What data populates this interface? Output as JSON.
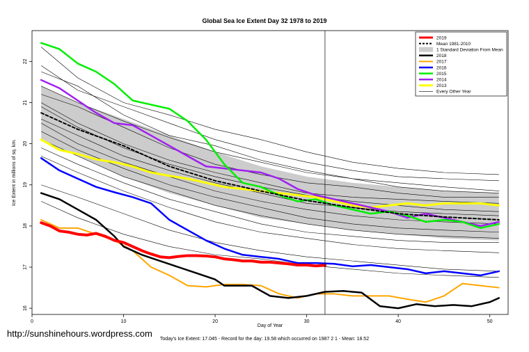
{
  "chart_data": {
    "type": "line",
    "title": "Global Sea Ice Extent Day 32 1978 to 2019",
    "xlabel": "Day of Year",
    "ylabel": "Ice Extent in millions of sq. km.",
    "xlim": [
      0,
      52
    ],
    "ylim": [
      15.85,
      22.75
    ],
    "x_ticks": [
      0,
      10,
      20,
      30,
      40,
      50
    ],
    "y_ticks": [
      16,
      17,
      18,
      19,
      20,
      21,
      22
    ],
    "current_day": 32,
    "legend_position": "top-right",
    "band": {
      "name": "1 Standard Deviation From Mean",
      "color": "#cccccc",
      "x": [
        1,
        5,
        10,
        15,
        20,
        25,
        30,
        35,
        40,
        45,
        51
      ],
      "upper": [
        21.4,
        21.0,
        20.6,
        20.2,
        19.8,
        19.45,
        19.2,
        19.05,
        18.95,
        18.85,
        18.8
      ],
      "lower": [
        20.1,
        19.7,
        19.2,
        18.8,
        18.5,
        18.2,
        18.05,
        17.9,
        17.8,
        17.7,
        17.65
      ]
    },
    "series": [
      {
        "name": "2019",
        "color": "#ff0000",
        "width": 4,
        "dash": "",
        "x": [
          1,
          2,
          3,
          4,
          5,
          6,
          7,
          8,
          9,
          10,
          11,
          12,
          13,
          14,
          15,
          16,
          17,
          18,
          19,
          20,
          21,
          22,
          23,
          24,
          25,
          26,
          27,
          28,
          29,
          30,
          31,
          32
        ],
        "y": [
          18.08,
          18.0,
          17.88,
          17.85,
          17.8,
          17.78,
          17.82,
          17.75,
          17.65,
          17.6,
          17.5,
          17.4,
          17.32,
          17.25,
          17.23,
          17.26,
          17.28,
          17.28,
          17.27,
          17.25,
          17.2,
          17.18,
          17.15,
          17.15,
          17.12,
          17.12,
          17.1,
          17.08,
          17.05,
          17.05,
          17.03,
          17.045
        ]
      },
      {
        "name": "Mean 1981-2010",
        "color": "#000000",
        "width": 2,
        "dash": "4,3",
        "x": [
          1,
          5,
          10,
          15,
          20,
          25,
          30,
          35,
          40,
          45,
          51
        ],
        "y": [
          20.75,
          20.35,
          19.95,
          19.45,
          19.1,
          18.85,
          18.62,
          18.45,
          18.3,
          18.22,
          18.15
        ]
      },
      {
        "name": "2018",
        "color": "#000000",
        "width": 2.5,
        "dash": "",
        "x": [
          1,
          3,
          5,
          7,
          9,
          10,
          12,
          14,
          16,
          18,
          20,
          21,
          24,
          26,
          28,
          30,
          32,
          34,
          36,
          38,
          40,
          42,
          44,
          46,
          48,
          50,
          51
        ],
        "y": [
          18.8,
          18.65,
          18.4,
          18.15,
          17.75,
          17.5,
          17.3,
          17.15,
          17.0,
          16.85,
          16.7,
          16.55,
          16.55,
          16.3,
          16.25,
          16.3,
          16.4,
          16.42,
          16.38,
          16.05,
          16.0,
          16.1,
          16.05,
          16.08,
          16.05,
          16.15,
          16.25
        ]
      },
      {
        "name": "2017",
        "color": "#ffa500",
        "width": 2,
        "dash": "",
        "x": [
          1,
          3,
          5,
          7,
          9,
          11,
          13,
          15,
          17,
          19,
          21,
          23,
          25,
          27,
          29,
          31,
          33,
          35,
          37,
          39,
          41,
          43,
          45,
          47,
          49,
          51
        ],
        "y": [
          18.15,
          17.95,
          17.95,
          17.8,
          17.65,
          17.4,
          17.0,
          16.8,
          16.55,
          16.52,
          16.58,
          16.58,
          16.55,
          16.35,
          16.25,
          16.35,
          16.35,
          16.3,
          16.3,
          16.3,
          16.22,
          16.15,
          16.3,
          16.6,
          16.55,
          16.5
        ]
      },
      {
        "name": "2016",
        "color": "#0000ff",
        "width": 2.5,
        "dash": "",
        "x": [
          1,
          3,
          5,
          7,
          9,
          11,
          13,
          15,
          17,
          19,
          21,
          23,
          25,
          27,
          29,
          31,
          33,
          35,
          37,
          39,
          41,
          43,
          45,
          47,
          49,
          51
        ],
        "y": [
          19.65,
          19.35,
          19.15,
          18.95,
          18.82,
          18.7,
          18.55,
          18.15,
          17.9,
          17.65,
          17.45,
          17.3,
          17.25,
          17.2,
          17.1,
          17.1,
          17.08,
          17.02,
          17.05,
          17.0,
          16.95,
          16.85,
          16.9,
          16.85,
          16.8,
          16.9
        ]
      },
      {
        "name": "2015",
        "color": "#00ee00",
        "width": 2.5,
        "dash": "",
        "x": [
          1,
          3,
          5,
          7,
          9,
          11,
          13,
          15,
          17,
          19,
          21,
          23,
          25,
          27,
          29,
          31,
          33,
          35,
          37,
          39,
          41,
          43,
          45,
          47,
          49,
          51
        ],
        "y": [
          22.45,
          22.3,
          21.95,
          21.75,
          21.45,
          21.05,
          20.95,
          20.85,
          20.55,
          20.1,
          19.5,
          19.05,
          18.95,
          18.75,
          18.6,
          18.65,
          18.5,
          18.4,
          18.3,
          18.35,
          18.25,
          18.1,
          18.15,
          18.1,
          17.95,
          18.05
        ]
      },
      {
        "name": "2014",
        "color": "#a020f0",
        "width": 2.5,
        "dash": "",
        "x": [
          1,
          3,
          5,
          7,
          9,
          11,
          13,
          15,
          17,
          19,
          21,
          23,
          25,
          27,
          29,
          31,
          33,
          35,
          37,
          39,
          41,
          43,
          45,
          47,
          49,
          51
        ],
        "y": [
          21.55,
          21.35,
          21.05,
          20.75,
          20.5,
          20.45,
          20.2,
          19.95,
          19.7,
          19.45,
          19.4,
          19.35,
          19.3,
          19.15,
          18.9,
          18.75,
          18.65,
          18.55,
          18.45,
          18.35,
          18.2,
          18.3,
          18.2,
          18.1,
          18.0,
          18.1
        ]
      },
      {
        "name": "2013",
        "color": "#ffff00",
        "width": 3,
        "dash": "",
        "x": [
          1,
          3,
          5,
          7,
          9,
          11,
          13,
          15,
          17,
          19,
          21,
          23,
          25,
          27,
          29,
          31,
          33,
          35,
          37,
          39,
          41,
          43,
          45,
          47,
          49,
          51
        ],
        "y": [
          20.1,
          19.85,
          19.75,
          19.62,
          19.55,
          19.45,
          19.3,
          19.22,
          19.15,
          19.05,
          18.95,
          18.9,
          18.85,
          18.8,
          18.75,
          18.7,
          18.6,
          18.5,
          18.45,
          18.5,
          18.55,
          18.5,
          18.55,
          18.55,
          18.55,
          18.5
        ]
      },
      {
        "name": "Every Other Year",
        "color": "#000000",
        "width": 0.6,
        "dash": "",
        "x": [
          1,
          5,
          10,
          15,
          20,
          25,
          30,
          35,
          40,
          45,
          51
        ],
        "y": [
          21.4,
          21.0,
          20.55,
          20.15,
          19.8,
          19.55,
          19.3,
          19.15,
          19.05,
          18.95,
          18.85
        ]
      }
    ],
    "other_years": [
      [
        22.35,
        21.6,
        21.0,
        20.7,
        20.35,
        20.1,
        19.8,
        19.55,
        19.4,
        19.3,
        19.25
      ],
      [
        21.9,
        21.3,
        20.9,
        20.5,
        20.1,
        19.8,
        19.55,
        19.35,
        19.2,
        19.15,
        19.1
      ],
      [
        21.75,
        21.4,
        20.7,
        20.2,
        19.95,
        19.6,
        19.35,
        19.15,
        18.95,
        18.85,
        18.8
      ],
      [
        21.2,
        20.9,
        20.4,
        19.9,
        19.5,
        19.25,
        19.05,
        18.95,
        18.8,
        18.7,
        18.7
      ],
      [
        21.0,
        20.5,
        20.0,
        19.6,
        19.3,
        19.05,
        18.8,
        18.7,
        18.65,
        18.6,
        18.55
      ],
      [
        20.9,
        20.4,
        19.9,
        19.5,
        19.2,
        18.95,
        18.75,
        18.6,
        18.5,
        18.4,
        18.35
      ],
      [
        20.6,
        20.2,
        19.7,
        19.35,
        19.05,
        18.8,
        18.55,
        18.45,
        18.35,
        18.3,
        18.25
      ],
      [
        20.5,
        20.0,
        19.55,
        19.2,
        18.85,
        18.6,
        18.4,
        18.25,
        18.15,
        18.1,
        18.05
      ],
      [
        20.3,
        19.85,
        19.4,
        19.0,
        18.7,
        18.45,
        18.2,
        18.05,
        17.95,
        17.9,
        17.85
      ],
      [
        20.1,
        19.7,
        19.2,
        18.85,
        18.5,
        18.25,
        18.05,
        17.9,
        17.8,
        17.75,
        17.7
      ],
      [
        19.9,
        19.5,
        19.05,
        18.65,
        18.35,
        18.05,
        17.85,
        17.75,
        17.65,
        17.6,
        17.6
      ],
      [
        19.7,
        19.3,
        18.85,
        18.45,
        18.1,
        17.85,
        17.7,
        17.55,
        17.45,
        17.4,
        17.35
      ],
      [
        19.0,
        18.7,
        18.3,
        17.9,
        17.6,
        17.4,
        17.25,
        17.15,
        17.05,
        16.95,
        16.9
      ],
      [
        18.6,
        18.2,
        17.8,
        17.5,
        17.3,
        17.2,
        17.05,
        16.95,
        16.85,
        16.8,
        16.75
      ]
    ]
  },
  "page": {
    "url": "http://sunshinehours.wordpress.com",
    "footer": "Today's Ice Extent: 17.045  - Record for the day: 19.58 which occurred on 1987 2 1  - Mean: 18.52"
  }
}
